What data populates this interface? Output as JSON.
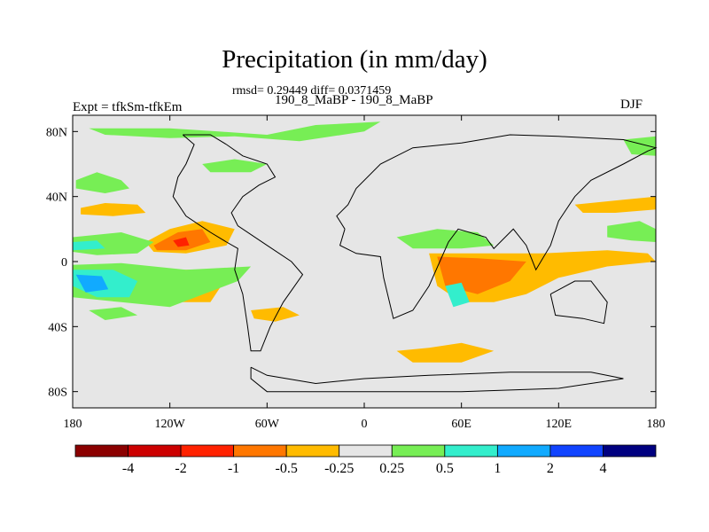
{
  "chart_data": {
    "type": "heatmap",
    "title": "Precipitation (in mm/day)",
    "stats_text": "rmsd= 0.29449 diff= 0.0371459",
    "runs_text": "190_8_MaBP - 190_8_MaBP",
    "left_label": "Expt = tfkSm-tfkEm",
    "right_label": "DJF",
    "x_range": [
      -180,
      180
    ],
    "y_range": [
      -90,
      90
    ],
    "x_ticks": [
      {
        "value": -180,
        "label": "180"
      },
      {
        "value": -120,
        "label": "120W"
      },
      {
        "value": -60,
        "label": "60W"
      },
      {
        "value": 0,
        "label": "0"
      },
      {
        "value": 60,
        "label": "60E"
      },
      {
        "value": 120,
        "label": "120E"
      },
      {
        "value": 180,
        "label": "180"
      }
    ],
    "y_ticks": [
      {
        "value": 80,
        "label": "80N"
      },
      {
        "value": 40,
        "label": "40N"
      },
      {
        "value": 0,
        "label": "0"
      },
      {
        "value": -40,
        "label": "40S"
      },
      {
        "value": -80,
        "label": "80S"
      }
    ],
    "colorbar": {
      "colors": [
        "#8b0000",
        "#cc0000",
        "#ff2200",
        "#ff7700",
        "#ffbb00",
        "#e6e6e6",
        "#77ee55",
        "#33eecc",
        "#11aaff",
        "#1144ff",
        "#000080"
      ],
      "labels": [
        "-4",
        "-2",
        "-1",
        "-0.5",
        "-0.25",
        "0.25",
        "0.5",
        "1",
        "2",
        "4"
      ]
    },
    "regions": [
      {
        "name": "arctic-band-wet",
        "level": "0.5",
        "color": "#77ee55",
        "polygon": [
          [
            -170,
            82
          ],
          [
            -120,
            82
          ],
          [
            -90,
            80
          ],
          [
            -60,
            78
          ],
          [
            -30,
            84
          ],
          [
            10,
            86
          ],
          [
            0,
            80
          ],
          [
            -40,
            74
          ],
          [
            -80,
            77
          ],
          [
            -120,
            76
          ],
          [
            -160,
            78
          ]
        ]
      },
      {
        "name": "north-pacific-wet",
        "level": "0.5",
        "color": "#77ee55",
        "polygon": [
          [
            -178,
            50
          ],
          [
            -165,
            55
          ],
          [
            -150,
            50
          ],
          [
            -145,
            45
          ],
          [
            -160,
            42
          ],
          [
            -178,
            45
          ]
        ]
      },
      {
        "name": "north-pacific-dry",
        "level": "-0.25",
        "color": "#ffbb00",
        "polygon": [
          [
            -175,
            33
          ],
          [
            -160,
            36
          ],
          [
            -140,
            35
          ],
          [
            -135,
            30
          ],
          [
            -155,
            28
          ],
          [
            -175,
            29
          ]
        ]
      },
      {
        "name": "pacific-dry-north-outer",
        "level": "-0.25",
        "color": "#ffbb00",
        "polygon": [
          [
            -135,
            12
          ],
          [
            -120,
            20
          ],
          [
            -100,
            25
          ],
          [
            -80,
            20
          ],
          [
            -85,
            10
          ],
          [
            -110,
            5
          ],
          [
            -130,
            6
          ]
        ]
      },
      {
        "name": "pacific-dry-north-mid",
        "level": "-0.5",
        "color": "#ff7700",
        "polygon": [
          [
            -130,
            10
          ],
          [
            -115,
            18
          ],
          [
            -100,
            20
          ],
          [
            -95,
            12
          ],
          [
            -110,
            7
          ],
          [
            -128,
            7
          ]
        ]
      },
      {
        "name": "pacific-dry-north-core",
        "level": "-1",
        "color": "#ff2200",
        "polygon": [
          [
            -118,
            13
          ],
          [
            -110,
            15
          ],
          [
            -108,
            10
          ],
          [
            -115,
            9
          ]
        ]
      },
      {
        "name": "pacific-dry-south-outer",
        "level": "-0.25",
        "color": "#ffbb00",
        "polygon": [
          [
            -140,
            -12
          ],
          [
            -120,
            -5
          ],
          [
            -100,
            -5
          ],
          [
            -85,
            -10
          ],
          [
            -95,
            -25
          ],
          [
            -120,
            -25
          ],
          [
            -140,
            -20
          ]
        ]
      },
      {
        "name": "pacific-dry-south-mid",
        "level": "-0.5",
        "color": "#ff7700",
        "polygon": [
          [
            -135,
            -13
          ],
          [
            -120,
            -8
          ],
          [
            -100,
            -8
          ],
          [
            -93,
            -14
          ],
          [
            -105,
            -22
          ],
          [
            -125,
            -22
          ]
        ]
      },
      {
        "name": "pacific-dry-south-core",
        "level": "-1",
        "color": "#ff2200",
        "polygon": [
          [
            -125,
            -13
          ],
          [
            -110,
            -10
          ],
          [
            -105,
            -15
          ],
          [
            -118,
            -18
          ]
        ]
      },
      {
        "name": "west-pacific-wet-north",
        "level": "0.5",
        "color": "#77ee55",
        "polygon": [
          [
            -180,
            15
          ],
          [
            -150,
            18
          ],
          [
            -130,
            12
          ],
          [
            -140,
            5
          ],
          [
            -165,
            4
          ],
          [
            -180,
            6
          ]
        ]
      },
      {
        "name": "west-pacific-wet-north-core",
        "level": "1",
        "color": "#33eecc",
        "polygon": [
          [
            -180,
            12
          ],
          [
            -165,
            13
          ],
          [
            -160,
            8
          ],
          [
            -180,
            7
          ]
        ]
      },
      {
        "name": "equatorial-wet-band",
        "level": "0.5",
        "color": "#77ee55",
        "polygon": [
          [
            -180,
            -2
          ],
          [
            -150,
            -1
          ],
          [
            -110,
            -5
          ],
          [
            -70,
            -3
          ],
          [
            -78,
            -12
          ],
          [
            -120,
            -28
          ],
          [
            -150,
            -25
          ],
          [
            -180,
            -22
          ]
        ]
      },
      {
        "name": "equatorial-wet-band-mid",
        "level": "1",
        "color": "#33eecc",
        "polygon": [
          [
            -180,
            -5
          ],
          [
            -155,
            -5
          ],
          [
            -140,
            -12
          ],
          [
            -145,
            -22
          ],
          [
            -165,
            -22
          ],
          [
            -180,
            -15
          ]
        ]
      },
      {
        "name": "equatorial-wet-band-core",
        "level": "2",
        "color": "#11aaff",
        "polygon": [
          [
            -178,
            -8
          ],
          [
            -162,
            -9
          ],
          [
            -158,
            -17
          ],
          [
            -172,
            -19
          ]
        ]
      },
      {
        "name": "south-pacific-wet",
        "level": "0.5",
        "color": "#77ee55",
        "polygon": [
          [
            -170,
            -30
          ],
          [
            -150,
            -28
          ],
          [
            -140,
            -33
          ],
          [
            -160,
            -36
          ]
        ]
      },
      {
        "name": "south-atlantic-dry",
        "level": "-0.25",
        "color": "#ffbb00",
        "polygon": [
          [
            -70,
            -30
          ],
          [
            -50,
            -28
          ],
          [
            -40,
            -33
          ],
          [
            -55,
            -37
          ],
          [
            -68,
            -35
          ]
        ]
      },
      {
        "name": "north-atlantic-wet",
        "level": "0.5",
        "color": "#77ee55",
        "polygon": [
          [
            -100,
            60
          ],
          [
            -80,
            63
          ],
          [
            -60,
            60
          ],
          [
            -70,
            55
          ],
          [
            -95,
            55
          ]
        ]
      },
      {
        "name": "equatorial-atlantic-wet",
        "level": "0.5",
        "color": "#77ee55",
        "polygon": [
          [
            20,
            15
          ],
          [
            45,
            20
          ],
          [
            70,
            18
          ],
          [
            80,
            10
          ],
          [
            60,
            8
          ],
          [
            30,
            8
          ]
        ]
      },
      {
        "name": "indian-ocean-dry-outer",
        "level": "-0.25",
        "color": "#ffbb00",
        "polygon": [
          [
            40,
            5
          ],
          [
            70,
            5
          ],
          [
            110,
            5
          ],
          [
            150,
            7
          ],
          [
            175,
            5
          ],
          [
            180,
            0
          ],
          [
            150,
            -3
          ],
          [
            120,
            -10
          ],
          [
            100,
            -20
          ],
          [
            80,
            -25
          ],
          [
            60,
            -25
          ],
          [
            45,
            -15
          ]
        ]
      },
      {
        "name": "indian-ocean-dry-core",
        "level": "-0.5",
        "color": "#ff7700",
        "polygon": [
          [
            45,
            3
          ],
          [
            70,
            2
          ],
          [
            100,
            0
          ],
          [
            90,
            -12
          ],
          [
            70,
            -20
          ],
          [
            50,
            -15
          ]
        ]
      },
      {
        "name": "madagascar-wet",
        "level": "1",
        "color": "#33eecc",
        "polygon": [
          [
            50,
            -15
          ],
          [
            60,
            -13
          ],
          [
            65,
            -25
          ],
          [
            55,
            -28
          ]
        ]
      },
      {
        "name": "australia-south-dry",
        "level": "-0.25",
        "color": "#ffbb00",
        "polygon": [
          [
            20,
            -55
          ],
          [
            40,
            -53
          ],
          [
            60,
            -50
          ],
          [
            80,
            -55
          ],
          [
            60,
            -62
          ],
          [
            30,
            -62
          ]
        ]
      },
      {
        "name": "north-pacific-east-dry",
        "level": "-0.25",
        "color": "#ffbb00",
        "polygon": [
          [
            130,
            35
          ],
          [
            160,
            38
          ],
          [
            180,
            40
          ],
          [
            180,
            32
          ],
          [
            155,
            30
          ],
          [
            135,
            30
          ]
        ]
      },
      {
        "name": "east-pacific-wet",
        "level": "0.5",
        "color": "#77ee55",
        "polygon": [
          [
            150,
            22
          ],
          [
            170,
            25
          ],
          [
            180,
            20
          ],
          [
            180,
            12
          ],
          [
            165,
            13
          ],
          [
            150,
            15
          ]
        ]
      },
      {
        "name": "arctic-east-wet",
        "level": "0.5",
        "color": "#77ee55",
        "polygon": [
          [
            160,
            75
          ],
          [
            180,
            77
          ],
          [
            180,
            65
          ],
          [
            165,
            66
          ]
        ]
      }
    ],
    "coastlines": [
      {
        "name": "americas",
        "points": [
          [
            -112,
            78
          ],
          [
            -105,
            72
          ],
          [
            -110,
            60
          ],
          [
            -115,
            52
          ],
          [
            -118,
            40
          ],
          [
            -110,
            28
          ],
          [
            -95,
            18
          ],
          [
            -85,
            12
          ],
          [
            -78,
            8
          ],
          [
            -80,
            -5
          ],
          [
            -75,
            -20
          ],
          [
            -72,
            -40
          ],
          [
            -70,
            -55
          ],
          [
            -64,
            -55
          ],
          [
            -58,
            -40
          ],
          [
            -50,
            -25
          ],
          [
            -38,
            -8
          ],
          [
            -45,
            0
          ],
          [
            -60,
            10
          ],
          [
            -78,
            22
          ],
          [
            -82,
            30
          ],
          [
            -75,
            40
          ],
          [
            -65,
            47
          ],
          [
            -55,
            52
          ],
          [
            -60,
            60
          ],
          [
            -75,
            65
          ],
          [
            -85,
            72
          ],
          [
            -95,
            78
          ],
          [
            -112,
            78
          ]
        ]
      },
      {
        "name": "africa-europe-asia",
        "points": [
          [
            -12,
            20
          ],
          [
            -15,
            10
          ],
          [
            -5,
            5
          ],
          [
            10,
            3
          ],
          [
            12,
            -10
          ],
          [
            18,
            -35
          ],
          [
            30,
            -30
          ],
          [
            40,
            -15
          ],
          [
            52,
            12
          ],
          [
            58,
            20
          ],
          [
            75,
            15
          ],
          [
            80,
            8
          ],
          [
            92,
            20
          ],
          [
            100,
            10
          ],
          [
            106,
            -5
          ],
          [
            115,
            10
          ],
          [
            120,
            25
          ],
          [
            130,
            40
          ],
          [
            140,
            50
          ],
          [
            160,
            60
          ],
          [
            175,
            68
          ],
          [
            180,
            70
          ],
          [
            160,
            75
          ],
          [
            120,
            77
          ],
          [
            90,
            78
          ],
          [
            60,
            73
          ],
          [
            30,
            70
          ],
          [
            10,
            60
          ],
          [
            -5,
            45
          ],
          [
            -10,
            35
          ],
          [
            -17,
            28
          ],
          [
            -12,
            20
          ]
        ]
      },
      {
        "name": "australia",
        "points": [
          [
            115,
            -20
          ],
          [
            130,
            -12
          ],
          [
            140,
            -12
          ],
          [
            150,
            -25
          ],
          [
            148,
            -38
          ],
          [
            135,
            -35
          ],
          [
            118,
            -33
          ],
          [
            115,
            -20
          ]
        ]
      },
      {
        "name": "antarctica",
        "points": [
          [
            -70,
            -65
          ],
          [
            -60,
            -70
          ],
          [
            -30,
            -75
          ],
          [
            0,
            -72
          ],
          [
            40,
            -70
          ],
          [
            90,
            -68
          ],
          [
            140,
            -68
          ],
          [
            160,
            -72
          ],
          [
            120,
            -78
          ],
          [
            60,
            -80
          ],
          [
            0,
            -80
          ],
          [
            -60,
            -80
          ],
          [
            -70,
            -72
          ],
          [
            -70,
            -65
          ]
        ]
      }
    ]
  }
}
